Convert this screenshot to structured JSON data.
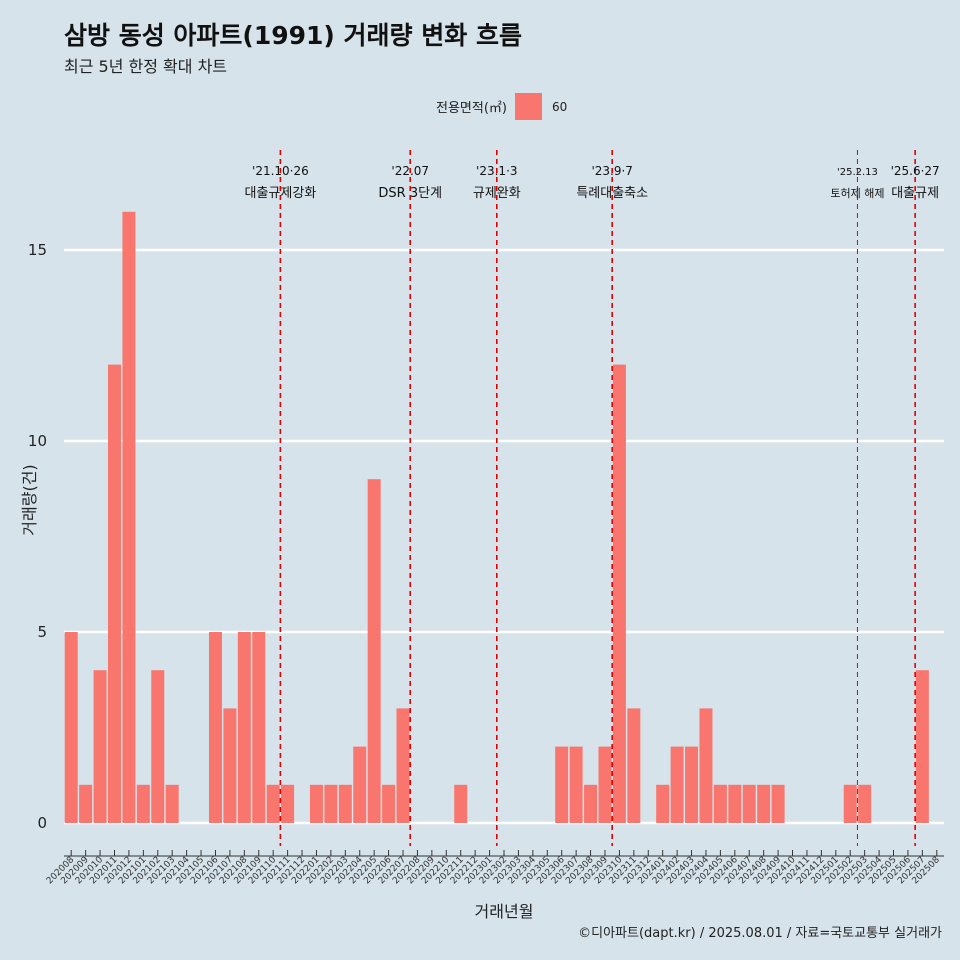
{
  "header": {
    "title": "삼방 동성 아파트(1991) 거래량 변화 흐름",
    "subtitle": "최근 5년 한정 확대 차트"
  },
  "legend": {
    "title": "전용면적(㎡)",
    "label": "60",
    "color": "#f8766d"
  },
  "caption": "©디아파트(dapt.kr) / 2025.08.01 / 자료=국토교통부 실거래가",
  "chart_data": {
    "type": "bar",
    "xlabel": "거래년월",
    "ylabel": "거래량(건)",
    "ylim": [
      0,
      16
    ],
    "yticks": [
      0,
      5,
      10,
      15
    ],
    "grid": true,
    "legend_position": "top",
    "categories": [
      "202008",
      "202009",
      "202010",
      "202011",
      "202012",
      "202101",
      "202102",
      "202103",
      "202104",
      "202105",
      "202106",
      "202107",
      "202108",
      "202109",
      "202110",
      "202111",
      "202112",
      "202201",
      "202202",
      "202203",
      "202204",
      "202205",
      "202206",
      "202207",
      "202208",
      "202209",
      "202210",
      "202211",
      "202212",
      "202301",
      "202302",
      "202303",
      "202304",
      "202305",
      "202306",
      "202307",
      "202308",
      "202309",
      "202310",
      "202311",
      "202312",
      "202401",
      "202402",
      "202403",
      "202404",
      "202405",
      "202406",
      "202407",
      "202408",
      "202409",
      "202410",
      "202411",
      "202412",
      "202501",
      "202502",
      "202503",
      "202504",
      "202505",
      "202506",
      "202507",
      "202508"
    ],
    "series": [
      {
        "name": "60",
        "values": [
          5,
          1,
          4,
          12,
          16,
          1,
          4,
          1,
          0,
          0,
          5,
          3,
          5,
          5,
          1,
          1,
          0,
          1,
          1,
          1,
          2,
          9,
          1,
          3,
          0,
          0,
          0,
          1,
          0,
          0,
          0,
          0,
          0,
          0,
          2,
          2,
          1,
          2,
          12,
          3,
          0,
          1,
          2,
          2,
          3,
          1,
          1,
          1,
          1,
          1,
          0,
          0,
          0,
          0,
          1,
          1,
          0,
          0,
          0,
          4,
          0
        ]
      }
    ],
    "annotations": [
      {
        "line1": "'21.10·26",
        "line2": "대출규제강화",
        "after": "202110",
        "small": false
      },
      {
        "line1": "'22.07",
        "line2": "DSR 3단계",
        "after": "202207",
        "small": false
      },
      {
        "line1": "'23.1·3",
        "line2": "규제완화",
        "after": "202301",
        "small": false
      },
      {
        "line1": "'23.9·7",
        "line2": "특례대출축소",
        "after": "202309",
        "small": false
      },
      {
        "line1": "'25.2.13",
        "line2": "토허제 해제",
        "after": "202502",
        "small": true
      },
      {
        "line1": "'25.6·27",
        "line2": "대출규제",
        "after": "202506",
        "small": false
      }
    ],
    "annotation_color": "#e00000"
  }
}
